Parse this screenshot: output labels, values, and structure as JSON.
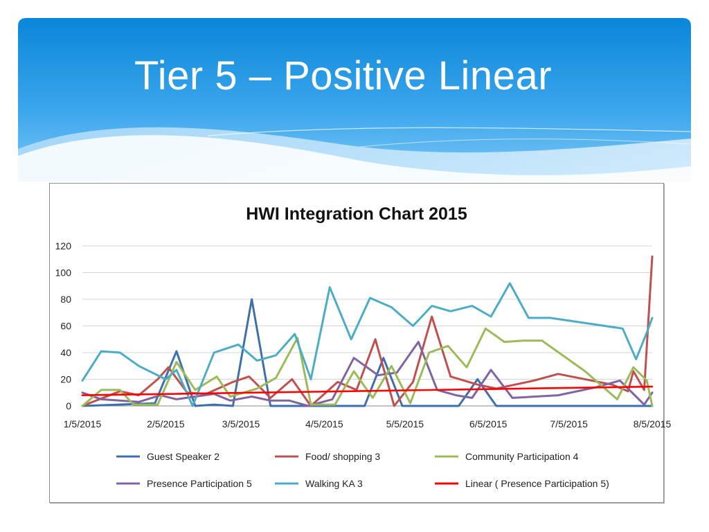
{
  "slide": {
    "title": "Tier 5 – Positive Linear"
  },
  "chart_data": {
    "type": "line",
    "title": "HWI Integration Chart 2015",
    "xlabel": "",
    "ylabel": "",
    "ylim": [
      0,
      120
    ],
    "yticks": [
      0,
      20,
      40,
      60,
      80,
      100,
      120
    ],
    "xrange": [
      "2015-01-05",
      "2015-08-05"
    ],
    "xticks": [
      "1/5/2015",
      "2/5/2015",
      "3/5/2015",
      "4/5/2015",
      "5/5/2015",
      "6/5/2015",
      "7/5/2015",
      "8/5/2015"
    ],
    "grid": "horizontal",
    "legend_position": "bottom",
    "series": [
      {
        "name": "Guest Speaker 2",
        "color": "#3e6fad",
        "points": [
          [
            "2015-01-05",
            0
          ],
          [
            "2015-02-01",
            2
          ],
          [
            "2015-02-09",
            41
          ],
          [
            "2015-02-16",
            0
          ],
          [
            "2015-02-23",
            1
          ],
          [
            "2015-03-02",
            0
          ],
          [
            "2015-03-09",
            80
          ],
          [
            "2015-03-16",
            0
          ],
          [
            "2015-03-23",
            0
          ],
          [
            "2015-03-30",
            0
          ],
          [
            "2015-04-20",
            0
          ],
          [
            "2015-04-27",
            36
          ],
          [
            "2015-05-04",
            0
          ],
          [
            "2015-05-25",
            0
          ],
          [
            "2015-06-01",
            20
          ],
          [
            "2015-06-08",
            0
          ],
          [
            "2015-08-05",
            0
          ]
        ]
      },
      {
        "name": "Food/ shopping 3",
        "color": "#c0504d",
        "points": [
          [
            "2015-01-05",
            0
          ],
          [
            "2015-01-19",
            11
          ],
          [
            "2015-01-26",
            8
          ],
          [
            "2015-02-02",
            20
          ],
          [
            "2015-02-06",
            29
          ],
          [
            "2015-02-13",
            10
          ],
          [
            "2015-02-20",
            9
          ],
          [
            "2015-03-02",
            18
          ],
          [
            "2015-03-08",
            22
          ],
          [
            "2015-03-16",
            6
          ],
          [
            "2015-03-24",
            20
          ],
          [
            "2015-03-31",
            0
          ],
          [
            "2015-04-10",
            18
          ],
          [
            "2015-04-17",
            12
          ],
          [
            "2015-04-24",
            50
          ],
          [
            "2015-05-01",
            0
          ],
          [
            "2015-05-08",
            18
          ],
          [
            "2015-05-15",
            67
          ],
          [
            "2015-05-22",
            22
          ],
          [
            "2015-06-01",
            16
          ],
          [
            "2015-06-08",
            13
          ],
          [
            "2015-06-22",
            19
          ],
          [
            "2015-07-01",
            24
          ],
          [
            "2015-07-21",
            16
          ],
          [
            "2015-07-27",
            11
          ],
          [
            "2015-07-29",
            26
          ],
          [
            "2015-08-02",
            12
          ],
          [
            "2015-08-05",
            112
          ]
        ]
      },
      {
        "name": "Community Participation 4",
        "color": "#9bbb59",
        "points": [
          [
            "2015-01-05",
            0
          ],
          [
            "2015-01-12",
            12
          ],
          [
            "2015-01-19",
            12
          ],
          [
            "2015-01-24",
            1
          ],
          [
            "2015-02-02",
            1
          ],
          [
            "2015-02-09",
            33
          ],
          [
            "2015-02-16",
            12
          ],
          [
            "2015-02-24",
            22
          ],
          [
            "2015-03-01",
            7
          ],
          [
            "2015-03-11",
            13
          ],
          [
            "2015-03-18",
            21
          ],
          [
            "2015-03-26",
            51
          ],
          [
            "2015-03-31",
            1
          ],
          [
            "2015-04-09",
            1
          ],
          [
            "2015-04-16",
            26
          ],
          [
            "2015-04-23",
            6
          ],
          [
            "2015-04-30",
            30
          ],
          [
            "2015-05-07",
            2
          ],
          [
            "2015-05-14",
            40
          ],
          [
            "2015-05-21",
            45
          ],
          [
            "2015-05-28",
            29
          ],
          [
            "2015-06-04",
            58
          ],
          [
            "2015-06-11",
            48
          ],
          [
            "2015-06-18",
            49
          ],
          [
            "2015-06-25",
            49
          ],
          [
            "2015-07-11",
            26
          ],
          [
            "2015-07-23",
            5
          ],
          [
            "2015-07-29",
            29
          ],
          [
            "2015-08-03",
            19
          ],
          [
            "2015-08-05",
            0
          ]
        ]
      },
      {
        "name": "Presence Participation 5",
        "color": "#8064a2",
        "points": [
          [
            "2015-01-05",
            10
          ],
          [
            "2015-01-12",
            5
          ],
          [
            "2015-01-19",
            4
          ],
          [
            "2015-01-26",
            3
          ],
          [
            "2015-02-03",
            8
          ],
          [
            "2015-02-09",
            5
          ],
          [
            "2015-02-16",
            7
          ],
          [
            "2015-02-23",
            9
          ],
          [
            "2015-03-01",
            4
          ],
          [
            "2015-03-09",
            7
          ],
          [
            "2015-03-16",
            4
          ],
          [
            "2015-03-23",
            4
          ],
          [
            "2015-03-30",
            0
          ],
          [
            "2015-04-08",
            5
          ],
          [
            "2015-04-16",
            36
          ],
          [
            "2015-04-25",
            23
          ],
          [
            "2015-05-02",
            25
          ],
          [
            "2015-05-10",
            48
          ],
          [
            "2015-05-17",
            12
          ],
          [
            "2015-05-24",
            8
          ],
          [
            "2015-05-30",
            6
          ],
          [
            "2015-06-06",
            27
          ],
          [
            "2015-06-14",
            6
          ],
          [
            "2015-07-01",
            8
          ],
          [
            "2015-07-15",
            14
          ],
          [
            "2015-07-24",
            19
          ],
          [
            "2015-07-30",
            7
          ],
          [
            "2015-08-02",
            1
          ],
          [
            "2015-08-05",
            10
          ]
        ]
      },
      {
        "name": "Walking KA 3",
        "color": "#4bacc6",
        "points": [
          [
            "2015-01-05",
            19
          ],
          [
            "2015-01-12",
            41
          ],
          [
            "2015-01-19",
            40
          ],
          [
            "2015-01-26",
            30
          ],
          [
            "2015-02-05",
            20
          ],
          [
            "2015-02-09",
            27
          ],
          [
            "2015-02-15",
            0
          ],
          [
            "2015-02-23",
            40
          ],
          [
            "2015-03-04",
            46
          ],
          [
            "2015-03-11",
            34
          ],
          [
            "2015-03-18",
            38
          ],
          [
            "2015-03-25",
            54
          ],
          [
            "2015-03-31",
            20
          ],
          [
            "2015-04-07",
            89
          ],
          [
            "2015-04-15",
            50
          ],
          [
            "2015-04-22",
            81
          ],
          [
            "2015-04-30",
            74
          ],
          [
            "2015-05-08",
            60
          ],
          [
            "2015-05-15",
            75
          ],
          [
            "2015-05-22",
            71
          ],
          [
            "2015-05-30",
            75
          ],
          [
            "2015-06-06",
            67
          ],
          [
            "2015-06-13",
            92
          ],
          [
            "2015-06-20",
            66
          ],
          [
            "2015-06-28",
            66
          ],
          [
            "2015-07-25",
            58
          ],
          [
            "2015-07-30",
            35
          ],
          [
            "2015-08-03",
            55
          ],
          [
            "2015-08-05",
            66
          ]
        ]
      },
      {
        "name": "Linear ( Presence Participation 5)",
        "color": "#ff0000",
        "trendline": true,
        "points": [
          [
            "2015-01-05",
            8
          ],
          [
            "2015-08-05",
            14.5
          ]
        ]
      }
    ]
  }
}
